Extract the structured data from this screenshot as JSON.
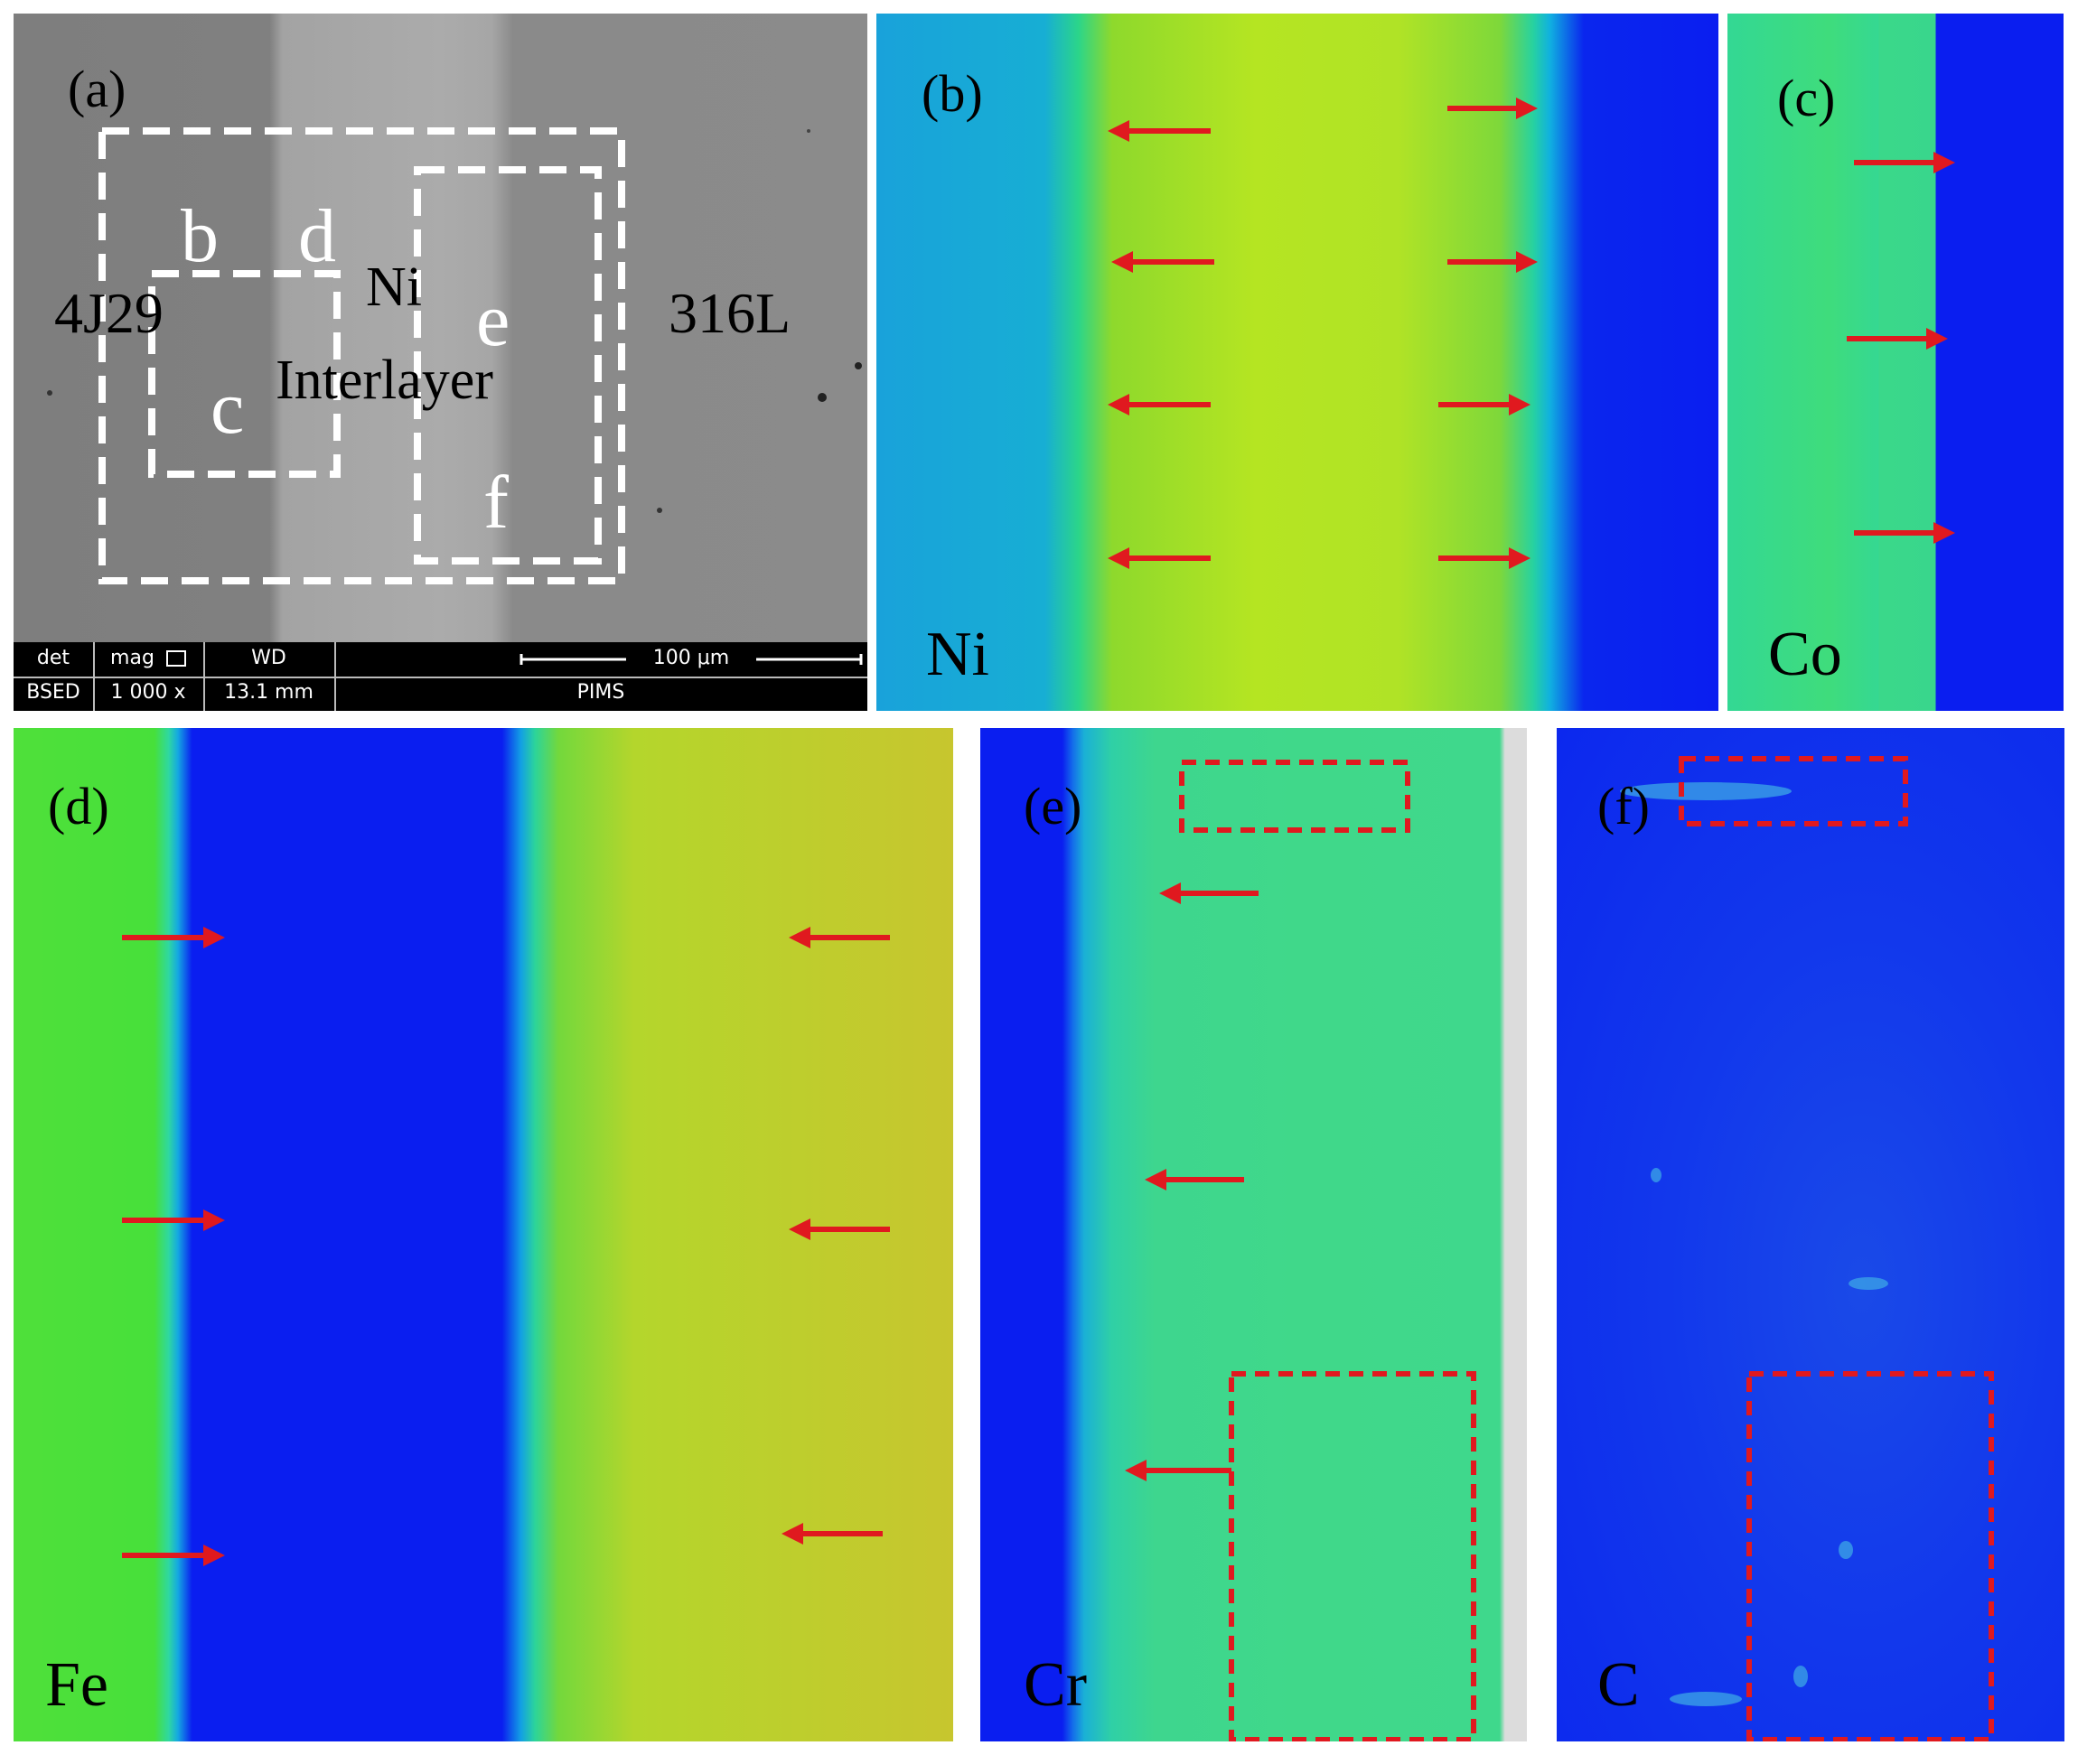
{
  "panel_a": {
    "label": "(a)",
    "region_labels": [
      "b",
      "d",
      "c",
      "e",
      "f"
    ],
    "left_material": "4J29",
    "center_material_line1": "Ni",
    "center_material_line2": "Interlayer",
    "right_material": "316L",
    "databar": {
      "det_header": "det",
      "det_value": "BSED",
      "mag_header": "mag",
      "mag_value": "1 000 x",
      "wd_header": "WD",
      "wd_value": "13.1 mm",
      "scale_text": "100 μm",
      "org_text": "PIMS"
    }
  },
  "panel_b": {
    "label": "(b)",
    "element": "Ni"
  },
  "panel_c": {
    "label": "(c)",
    "element": "Co"
  },
  "panel_d": {
    "label": "(d)",
    "element": "Fe"
  },
  "panel_e": {
    "label": "(e)",
    "element": "Cr"
  },
  "panel_f": {
    "label": "(f)",
    "element": "C"
  },
  "colors": {
    "map_blue": "#0a1ef0",
    "map_cyan": "#16a9d6",
    "map_green": "#3fe03c",
    "map_yellow": "#b7e61f",
    "arrow_red": "#e0191f",
    "sem_gray": "#8a8a8a"
  }
}
